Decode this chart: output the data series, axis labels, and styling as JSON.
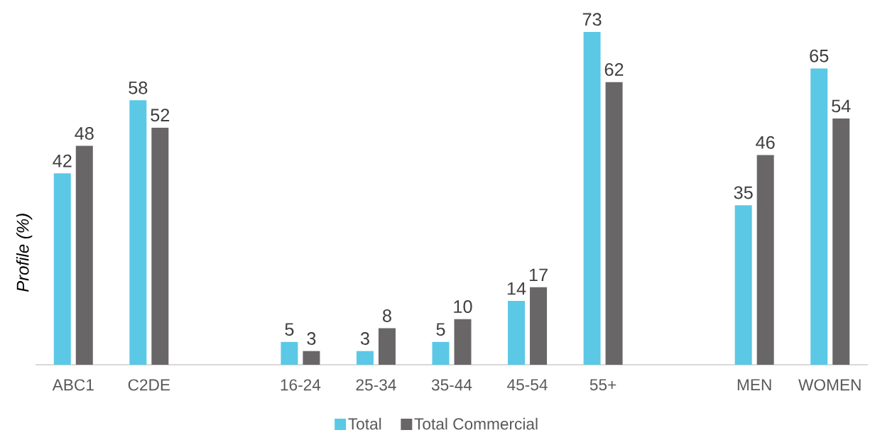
{
  "chart_data": {
    "type": "bar",
    "ylabel": "Profile (%)",
    "categories": [
      "ABC1",
      "C2DE",
      null,
      "16-24",
      "25-34",
      "35-44",
      "45-54",
      "55+",
      null,
      "MEN",
      "WOMEN"
    ],
    "series": [
      {
        "name": "Total",
        "color": "#5bc8e6",
        "values": [
          42,
          58,
          null,
          5,
          3,
          5,
          14,
          73,
          null,
          35,
          65
        ]
      },
      {
        "name": "Total Commercial",
        "color": "#686667",
        "values": [
          48,
          52,
          null,
          3,
          8,
          10,
          17,
          62,
          null,
          46,
          54
        ]
      }
    ],
    "data_labels": true,
    "legend": "bottom"
  }
}
